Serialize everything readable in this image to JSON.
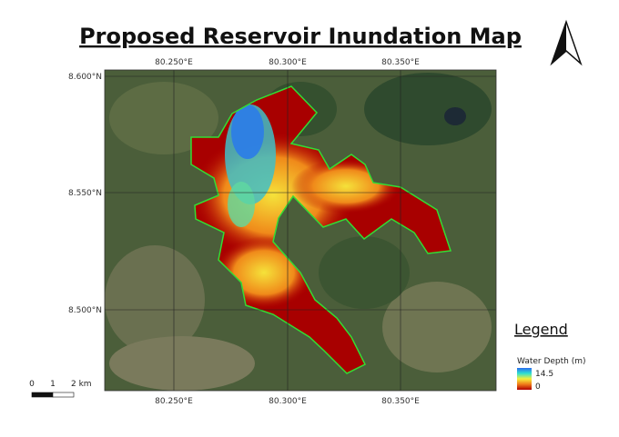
{
  "header": {
    "title": "Proposed Reservoir Inundation Map"
  },
  "map": {
    "top_labels": [
      "80.250°E",
      "80.300°E",
      "80.350°E"
    ],
    "bottom_labels": [
      "80.250°E",
      "80.300°E",
      "80.350°E"
    ],
    "left_labels": [
      "8.600°N",
      "8.550°N",
      "8.500°N"
    ]
  },
  "legend": {
    "title": "Legend",
    "layer": "Water Depth (m)",
    "max_label": "14.5",
    "min_label": "0"
  },
  "scale_bar": {
    "labels": [
      "0",
      "1",
      "2 km"
    ]
  }
}
